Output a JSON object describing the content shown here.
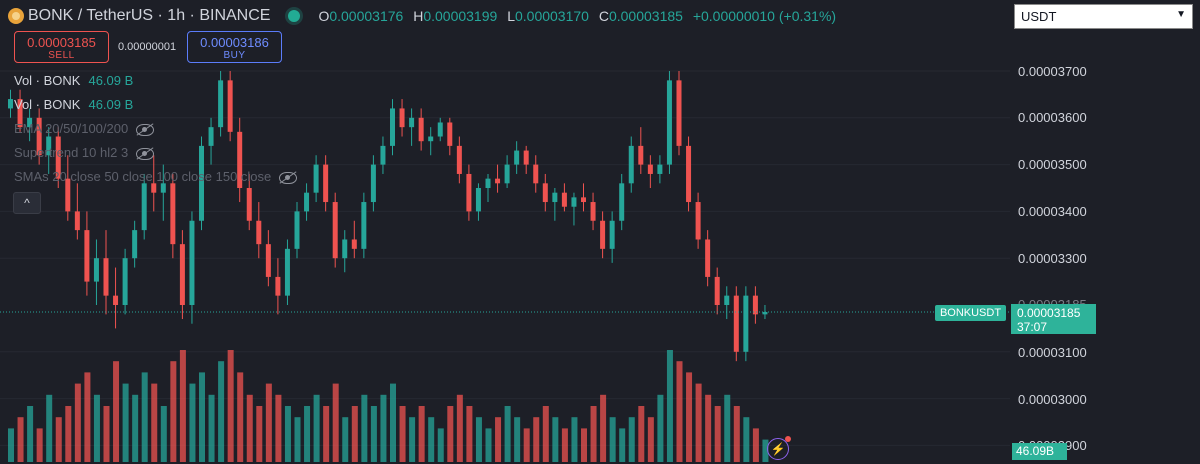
{
  "header": {
    "symbol": "BONK / TetherUS · 1h · BINANCE",
    "o_label": "O",
    "o_value": "0.00003176",
    "h_label": "H",
    "h_value": "0.00003199",
    "l_label": "L",
    "l_value": "0.00003170",
    "c_label": "C",
    "c_value": "0.00003185",
    "change": "+0.00000010 (+0.31%)"
  },
  "trade": {
    "sell_price": "0.00003185",
    "sell_label": "SELL",
    "spread": "0.00000001",
    "buy_price": "0.00003186",
    "buy_label": "BUY"
  },
  "legend": {
    "vol1_label": "Vol · BONK",
    "vol1_value": "46.09 B",
    "vol2_label": "Vol · BONK",
    "vol2_value": "46.09 B",
    "ema": "EMA 20/50/100/200",
    "supertrend": "Supertrend 10 hl2 3",
    "smas": "SMAs 20 close 50 close 100 close 150 close",
    "collapse_icon": "^"
  },
  "currency": {
    "selected": "USDT"
  },
  "price_axis": [
    "0.00003700",
    "0.00003600",
    "0.00003500",
    "0.00003400",
    "0.00003300",
    "0.00003185",
    "0.00003100",
    "0.00003000",
    "0.00002900"
  ],
  "current": {
    "symbol_tag": "BONKUSDT",
    "price": "0.00003185",
    "countdown": "37:07",
    "volume": "46.09B"
  },
  "colors": {
    "up": "#26a69a",
    "down": "#ef5350",
    "bg": "#1d1f27"
  },
  "icons": {
    "bolt": "⚡"
  },
  "chart_data": {
    "type": "candlestick",
    "interval": "1h",
    "price_range": [
      2.9e-05,
      3.71e-05
    ],
    "candles": [
      [
        3.62,
        3.66,
        3.6,
        3.64
      ],
      [
        3.64,
        3.66,
        3.57,
        3.58
      ],
      [
        3.58,
        3.62,
        3.55,
        3.6
      ],
      [
        3.6,
        3.62,
        3.5,
        3.52
      ],
      [
        3.52,
        3.58,
        3.48,
        3.56
      ],
      [
        3.56,
        3.58,
        3.45,
        3.47
      ],
      [
        3.47,
        3.52,
        3.38,
        3.4
      ],
      [
        3.4,
        3.46,
        3.34,
        3.36
      ],
      [
        3.36,
        3.4,
        3.22,
        3.25
      ],
      [
        3.25,
        3.34,
        3.2,
        3.3
      ],
      [
        3.3,
        3.36,
        3.18,
        3.22
      ],
      [
        3.22,
        3.28,
        3.15,
        3.2
      ],
      [
        3.2,
        3.32,
        3.18,
        3.3
      ],
      [
        3.3,
        3.38,
        3.28,
        3.36
      ],
      [
        3.36,
        3.48,
        3.34,
        3.46
      ],
      [
        3.46,
        3.52,
        3.4,
        3.44
      ],
      [
        3.44,
        3.5,
        3.38,
        3.46
      ],
      [
        3.46,
        3.48,
        3.3,
        3.33
      ],
      [
        3.33,
        3.36,
        3.17,
        3.2
      ],
      [
        3.2,
        3.4,
        3.16,
        3.38
      ],
      [
        3.38,
        3.56,
        3.36,
        3.54
      ],
      [
        3.54,
        3.6,
        3.5,
        3.58
      ],
      [
        3.58,
        3.7,
        3.56,
        3.68
      ],
      [
        3.68,
        3.7,
        3.55,
        3.57
      ],
      [
        3.57,
        3.6,
        3.42,
        3.45
      ],
      [
        3.45,
        3.48,
        3.36,
        3.38
      ],
      [
        3.38,
        3.42,
        3.3,
        3.33
      ],
      [
        3.33,
        3.36,
        3.24,
        3.26
      ],
      [
        3.26,
        3.3,
        3.18,
        3.22
      ],
      [
        3.22,
        3.34,
        3.2,
        3.32
      ],
      [
        3.32,
        3.42,
        3.3,
        3.4
      ],
      [
        3.4,
        3.46,
        3.38,
        3.44
      ],
      [
        3.44,
        3.52,
        3.42,
        3.5
      ],
      [
        3.5,
        3.52,
        3.4,
        3.42
      ],
      [
        3.42,
        3.44,
        3.28,
        3.3
      ],
      [
        3.3,
        3.36,
        3.27,
        3.34
      ],
      [
        3.34,
        3.38,
        3.3,
        3.32
      ],
      [
        3.32,
        3.44,
        3.3,
        3.42
      ],
      [
        3.42,
        3.52,
        3.4,
        3.5
      ],
      [
        3.5,
        3.56,
        3.48,
        3.54
      ],
      [
        3.54,
        3.64,
        3.52,
        3.62
      ],
      [
        3.62,
        3.64,
        3.56,
        3.58
      ],
      [
        3.58,
        3.62,
        3.54,
        3.6
      ],
      [
        3.6,
        3.62,
        3.53,
        3.55
      ],
      [
        3.55,
        3.58,
        3.52,
        3.56
      ],
      [
        3.56,
        3.6,
        3.55,
        3.59
      ],
      [
        3.59,
        3.6,
        3.52,
        3.54
      ],
      [
        3.54,
        3.56,
        3.46,
        3.48
      ],
      [
        3.48,
        3.5,
        3.38,
        3.4
      ],
      [
        3.4,
        3.46,
        3.38,
        3.45
      ],
      [
        3.45,
        3.48,
        3.42,
        3.47
      ],
      [
        3.47,
        3.5,
        3.44,
        3.46
      ],
      [
        3.46,
        3.52,
        3.45,
        3.5
      ],
      [
        3.5,
        3.55,
        3.48,
        3.53
      ],
      [
        3.53,
        3.54,
        3.48,
        3.5
      ],
      [
        3.5,
        3.52,
        3.44,
        3.46
      ],
      [
        3.46,
        3.48,
        3.4,
        3.42
      ],
      [
        3.42,
        3.45,
        3.38,
        3.44
      ],
      [
        3.44,
        3.46,
        3.4,
        3.41
      ],
      [
        3.41,
        3.44,
        3.37,
        3.43
      ],
      [
        3.43,
        3.46,
        3.4,
        3.42
      ],
      [
        3.42,
        3.44,
        3.36,
        3.38
      ],
      [
        3.38,
        3.4,
        3.3,
        3.32
      ],
      [
        3.32,
        3.4,
        3.29,
        3.38
      ],
      [
        3.38,
        3.48,
        3.36,
        3.46
      ],
      [
        3.46,
        3.56,
        3.44,
        3.54
      ],
      [
        3.54,
        3.58,
        3.48,
        3.5
      ],
      [
        3.5,
        3.52,
        3.45,
        3.48
      ],
      [
        3.48,
        3.52,
        3.46,
        3.5
      ],
      [
        3.5,
        3.7,
        3.48,
        3.68
      ],
      [
        3.68,
        3.7,
        3.52,
        3.54
      ],
      [
        3.54,
        3.56,
        3.4,
        3.42
      ],
      [
        3.42,
        3.44,
        3.32,
        3.34
      ],
      [
        3.34,
        3.36,
        3.24,
        3.26
      ],
      [
        3.26,
        3.28,
        3.18,
        3.2
      ],
      [
        3.2,
        3.24,
        3.17,
        3.22
      ],
      [
        3.22,
        3.24,
        3.08,
        3.1
      ],
      [
        3.1,
        3.24,
        3.08,
        3.22
      ],
      [
        3.22,
        3.24,
        3.16,
        3.18
      ],
      [
        3.18,
        3.2,
        3.17,
        3.185
      ]
    ],
    "volumes": [
      3,
      4,
      5,
      3,
      6,
      4,
      5,
      7,
      8,
      6,
      5,
      9,
      7,
      6,
      8,
      7,
      5,
      9,
      10,
      7,
      8,
      6,
      9,
      10,
      8,
      6,
      5,
      7,
      6,
      5,
      4,
      5,
      6,
      5,
      7,
      4,
      5,
      6,
      5,
      6,
      7,
      5,
      4,
      5,
      4,
      3,
      5,
      6,
      5,
      4,
      3,
      4,
      5,
      4,
      3,
      4,
      5,
      4,
      3,
      4,
      3,
      5,
      6,
      4,
      3,
      4,
      5,
      4,
      6,
      10,
      9,
      8,
      7,
      6,
      5,
      6,
      5,
      4,
      3,
      2
    ]
  }
}
